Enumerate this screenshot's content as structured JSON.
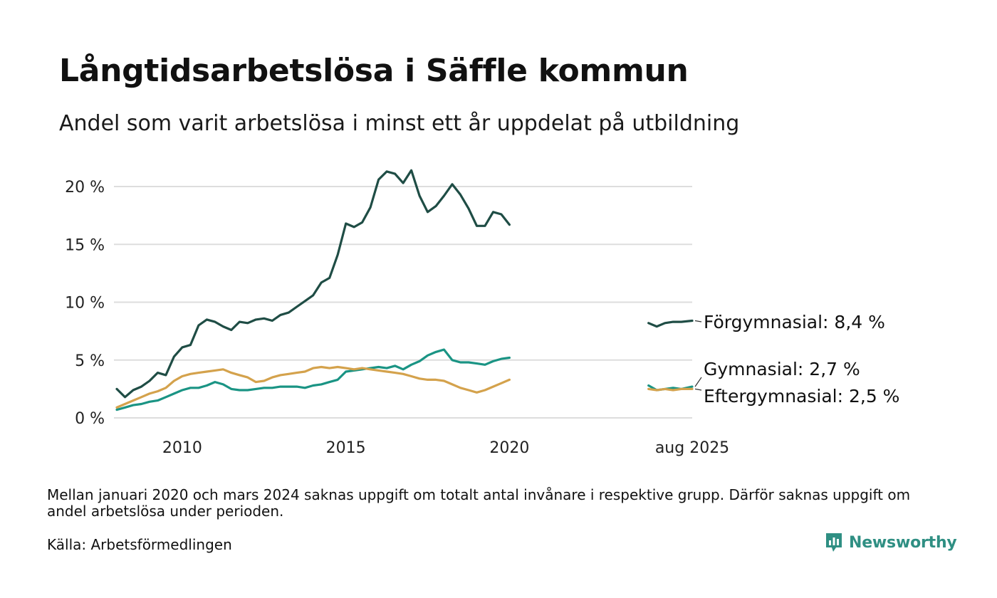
{
  "header": {
    "title": "Långtidsarbetslösa i Säffle kommun",
    "subtitle": "Andel som varit arbetslösa i minst ett år uppdelat på utbildning"
  },
  "footer": {
    "note": "Mellan januari 2020 och mars 2024 saknas uppgift om totalt antal invånare i respektive grupp. Därför saknas uppgift om andel arbetslösa under perioden.",
    "source": "Källa: Arbetsförmedlingen",
    "brand": "Newsworthy"
  },
  "colors": {
    "forgymnasial": "#1f4d45",
    "gymnasial": "#1a9484",
    "eftergymnasial": "#d4a24c",
    "grid": "#dddddd"
  },
  "chart_data": {
    "type": "line",
    "title": "Långtidsarbetslösa i Säffle kommun",
    "subtitle": "Andel som varit arbetslösa i minst ett år uppdelat på utbildning",
    "y_unit": "%",
    "ylim": [
      0,
      22
    ],
    "y_ticks": [
      {
        "value": 0,
        "label": "0 %"
      },
      {
        "value": 5,
        "label": "5 %"
      },
      {
        "value": 10,
        "label": "10 %"
      },
      {
        "value": 15,
        "label": "15 %"
      },
      {
        "value": 20,
        "label": "20 %"
      }
    ],
    "x_ticks": [
      {
        "value": "2010-01",
        "label": "2010"
      },
      {
        "value": "2015-01",
        "label": "2015"
      },
      {
        "value": "2020-01",
        "label": "2020"
      },
      {
        "value": "2025-08",
        "label": "aug 2025"
      }
    ],
    "xlim": [
      "2008-01",
      "2025-08"
    ],
    "grid": "horizontal",
    "series": [
      {
        "name": "Förgymnasial",
        "end_label": "Förgymnasial: 8,4 %",
        "color": "#1f4d45",
        "segments": [
          {
            "x": [
              "2008-01",
              "2008-04",
              "2008-07",
              "2008-10",
              "2009-01",
              "2009-04",
              "2009-07",
              "2009-10",
              "2010-01",
              "2010-04",
              "2010-07",
              "2010-10",
              "2011-01",
              "2011-04",
              "2011-07",
              "2011-10",
              "2012-01",
              "2012-04",
              "2012-07",
              "2012-10",
              "2013-01",
              "2013-04",
              "2013-07",
              "2013-10",
              "2014-01",
              "2014-04",
              "2014-07",
              "2014-10",
              "2015-01",
              "2015-04",
              "2015-07",
              "2015-10",
              "2016-01",
              "2016-04",
              "2016-07",
              "2016-10",
              "2017-01",
              "2017-04",
              "2017-07",
              "2017-10",
              "2018-01",
              "2018-04",
              "2018-07",
              "2018-10",
              "2019-01",
              "2019-04",
              "2019-07",
              "2019-10",
              "2020-01"
            ],
            "y": [
              2.5,
              1.8,
              2.4,
              2.7,
              3.2,
              3.9,
              3.7,
              5.3,
              6.1,
              6.3,
              8.0,
              8.5,
              8.3,
              7.9,
              7.6,
              8.3,
              8.2,
              8.5,
              8.6,
              8.4,
              8.9,
              9.1,
              9.6,
              10.1,
              10.6,
              11.7,
              12.1,
              14.1,
              16.8,
              16.5,
              16.9,
              18.2,
              20.6,
              21.3,
              21.1,
              20.3,
              21.4,
              19.2,
              17.8,
              18.3,
              19.2,
              20.2,
              19.3,
              18.1,
              16.6,
              16.6,
              17.8,
              17.6,
              16.7
            ]
          },
          {
            "x": [
              "2024-04",
              "2024-07",
              "2024-10",
              "2025-01",
              "2025-04",
              "2025-08"
            ],
            "y": [
              8.2,
              7.9,
              8.2,
              8.3,
              8.3,
              8.4
            ]
          }
        ]
      },
      {
        "name": "Gymnasial",
        "end_label": "Gymnasial: 2,7 %",
        "color": "#1a9484",
        "segments": [
          {
            "x": [
              "2008-01",
              "2008-04",
              "2008-07",
              "2008-10",
              "2009-01",
              "2009-04",
              "2009-07",
              "2009-10",
              "2010-01",
              "2010-04",
              "2010-07",
              "2010-10",
              "2011-01",
              "2011-04",
              "2011-07",
              "2011-10",
              "2012-01",
              "2012-04",
              "2012-07",
              "2012-10",
              "2013-01",
              "2013-04",
              "2013-07",
              "2013-10",
              "2014-01",
              "2014-04",
              "2014-07",
              "2014-10",
              "2015-01",
              "2015-04",
              "2015-07",
              "2015-10",
              "2016-01",
              "2016-04",
              "2016-07",
              "2016-10",
              "2017-01",
              "2017-04",
              "2017-07",
              "2017-10",
              "2018-01",
              "2018-04",
              "2018-07",
              "2018-10",
              "2019-01",
              "2019-04",
              "2019-07",
              "2019-10",
              "2020-01"
            ],
            "y": [
              0.7,
              0.9,
              1.1,
              1.2,
              1.4,
              1.5,
              1.8,
              2.1,
              2.4,
              2.6,
              2.6,
              2.8,
              3.1,
              2.9,
              2.5,
              2.4,
              2.4,
              2.5,
              2.6,
              2.6,
              2.7,
              2.7,
              2.7,
              2.6,
              2.8,
              2.9,
              3.1,
              3.3,
              4.0,
              4.1,
              4.2,
              4.3,
              4.4,
              4.3,
              4.5,
              4.2,
              4.6,
              4.9,
              5.4,
              5.7,
              5.9,
              5.0,
              4.8,
              4.8,
              4.7,
              4.6,
              4.9,
              5.1,
              5.2
            ]
          },
          {
            "x": [
              "2024-04",
              "2024-07",
              "2024-10",
              "2025-01",
              "2025-04",
              "2025-08"
            ],
            "y": [
              2.8,
              2.4,
              2.5,
              2.6,
              2.5,
              2.7
            ]
          }
        ]
      },
      {
        "name": "Eftergymnasial",
        "end_label": "Eftergymnasial: 2,5 %",
        "color": "#d4a24c",
        "segments": [
          {
            "x": [
              "2008-01",
              "2008-04",
              "2008-07",
              "2008-10",
              "2009-01",
              "2009-04",
              "2009-07",
              "2009-10",
              "2010-01",
              "2010-04",
              "2010-07",
              "2010-10",
              "2011-01",
              "2011-04",
              "2011-07",
              "2011-10",
              "2012-01",
              "2012-04",
              "2012-07",
              "2012-10",
              "2013-01",
              "2013-04",
              "2013-07",
              "2013-10",
              "2014-01",
              "2014-04",
              "2014-07",
              "2014-10",
              "2015-01",
              "2015-04",
              "2015-07",
              "2015-10",
              "2016-01",
              "2016-04",
              "2016-07",
              "2016-10",
              "2017-01",
              "2017-04",
              "2017-07",
              "2017-10",
              "2018-01",
              "2018-04",
              "2018-07",
              "2018-10",
              "2019-01",
              "2019-04",
              "2019-07",
              "2019-10",
              "2020-01"
            ],
            "y": [
              0.9,
              1.2,
              1.5,
              1.8,
              2.1,
              2.3,
              2.6,
              3.2,
              3.6,
              3.8,
              3.9,
              4.0,
              4.1,
              4.2,
              3.9,
              3.7,
              3.5,
              3.1,
              3.2,
              3.5,
              3.7,
              3.8,
              3.9,
              4.0,
              4.3,
              4.4,
              4.3,
              4.4,
              4.3,
              4.2,
              4.3,
              4.2,
              4.1,
              4.0,
              3.9,
              3.8,
              3.6,
              3.4,
              3.3,
              3.3,
              3.2,
              2.9,
              2.6,
              2.4,
              2.2,
              2.4,
              2.7,
              3.0,
              3.3
            ]
          },
          {
            "x": [
              "2024-04",
              "2024-07",
              "2024-10",
              "2025-01",
              "2025-04",
              "2025-08"
            ],
            "y": [
              2.5,
              2.4,
              2.5,
              2.4,
              2.5,
              2.5
            ]
          }
        ]
      }
    ]
  }
}
